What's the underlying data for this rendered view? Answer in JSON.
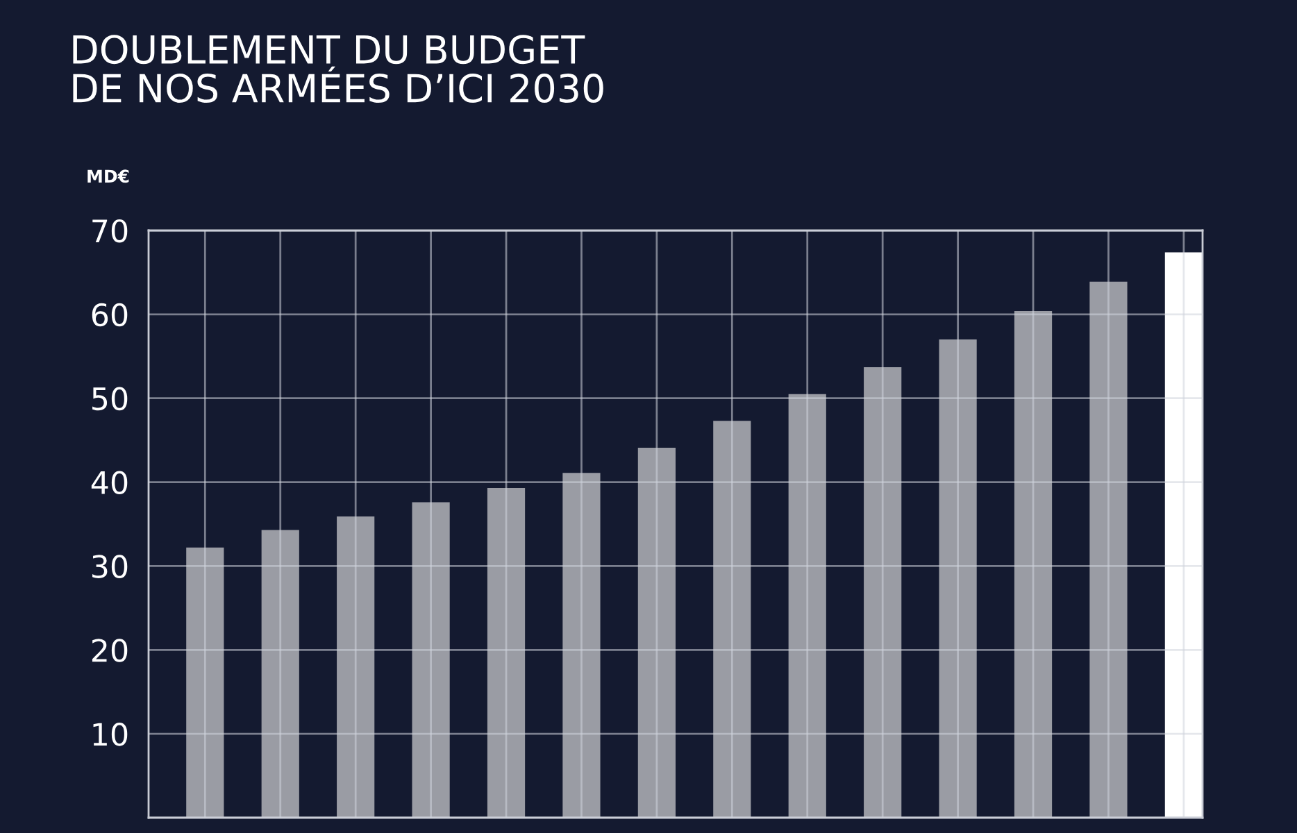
{
  "chart_data": {
    "type": "bar",
    "title": "DOUBLEMENT DU BUDGET\nDE NOS ARMÉES D’ICI 2030",
    "ylabel": "MD€",
    "categories": [
      null,
      null,
      null,
      null,
      null,
      null,
      null,
      null,
      null,
      null,
      null,
      null,
      null,
      null
    ],
    "values": [
      32.2,
      34.3,
      35.9,
      37.6,
      39.3,
      41.1,
      44.1,
      47.3,
      50.5,
      53.7,
      57.0,
      60.4,
      63.9,
      67.4
    ],
    "colors": [
      "#9a9ca4",
      "#9a9ca4",
      "#9a9ca4",
      "#9a9ca4",
      "#9a9ca4",
      "#9a9ca4",
      "#9a9ca4",
      "#9a9ca4",
      "#9a9ca4",
      "#9a9ca4",
      "#9a9ca4",
      "#9a9ca4",
      "#9a9ca4",
      "#ffffff"
    ],
    "ylim": [
      0,
      70
    ],
    "yticks": [
      {
        "value": 0,
        "label": null
      },
      10,
      20,
      30,
      40,
      50,
      60,
      70
    ],
    "grid": true
  }
}
